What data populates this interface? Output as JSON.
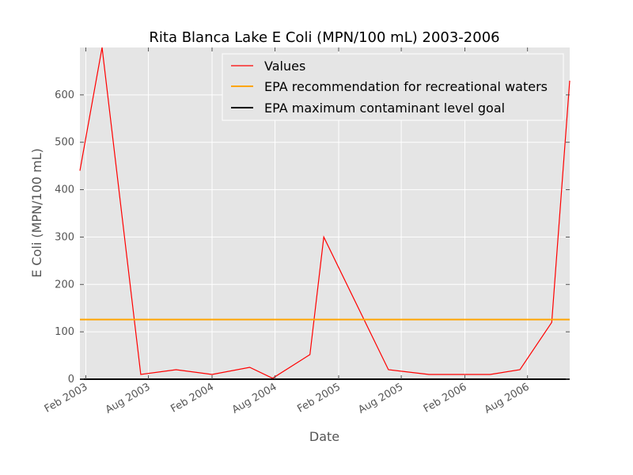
{
  "chart_data": {
    "type": "line",
    "title": "Rita Blanca Lake E Coli (MPN/100 mL) 2003-2006",
    "xlabel": "Date",
    "ylabel": "E Coli (MPN/100 mL)",
    "xlim": [
      "2003-01-15",
      "2006-12-01"
    ],
    "ylim": [
      0,
      700
    ],
    "y_ticks": [
      0,
      100,
      200,
      300,
      400,
      500,
      600
    ],
    "x_ticks": [
      {
        "date": "2003-02-01",
        "label": "Feb 2003"
      },
      {
        "date": "2003-08-01",
        "label": "Aug 2003"
      },
      {
        "date": "2004-02-01",
        "label": "Feb 2004"
      },
      {
        "date": "2004-08-01",
        "label": "Aug 2004"
      },
      {
        "date": "2005-02-01",
        "label": "Feb 2005"
      },
      {
        "date": "2005-08-01",
        "label": "Aug 2005"
      },
      {
        "date": "2006-02-01",
        "label": "Feb 2006"
      },
      {
        "date": "2006-08-01",
        "label": "Aug 2006"
      }
    ],
    "grid": true,
    "legend_position": "top-right",
    "series": [
      {
        "name": "Values",
        "color": "#ff0000",
        "points": [
          {
            "x": "2003-01-15",
            "y": 440
          },
          {
            "x": "2003-03-20",
            "y": 700
          },
          {
            "x": "2003-07-10",
            "y": 10
          },
          {
            "x": "2003-10-20",
            "y": 20
          },
          {
            "x": "2004-02-01",
            "y": 10
          },
          {
            "x": "2004-05-20",
            "y": 25
          },
          {
            "x": "2004-07-25",
            "y": 2
          },
          {
            "x": "2004-11-10",
            "y": 52
          },
          {
            "x": "2004-12-20",
            "y": 300
          },
          {
            "x": "2005-06-25",
            "y": 20
          },
          {
            "x": "2005-10-20",
            "y": 10
          },
          {
            "x": "2006-04-15",
            "y": 10
          },
          {
            "x": "2006-07-10",
            "y": 20
          },
          {
            "x": "2006-10-10",
            "y": 120
          },
          {
            "x": "2006-12-01",
            "y": 630
          }
        ]
      },
      {
        "name": "EPA recommendation for recreational waters",
        "color": "#ffa500",
        "constant": 126
      },
      {
        "name": "EPA maximum contaminant level goal",
        "color": "#000000",
        "constant": 0
      }
    ]
  }
}
